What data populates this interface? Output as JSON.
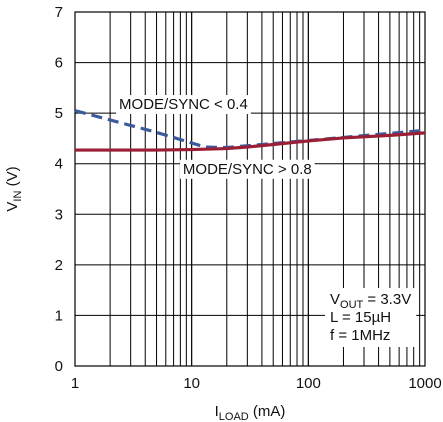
{
  "chart_data": {
    "type": "line",
    "x_scale": "log",
    "xlim": [
      1,
      1000
    ],
    "ylim": [
      0,
      7
    ],
    "grid": true,
    "xlabel": {
      "main": "I",
      "sub": "LOAD",
      "unit": " (mA)"
    },
    "ylabel": {
      "main": "V",
      "sub": "IN",
      "unit": " (V)"
    },
    "x_ticks": [
      {
        "value": 1,
        "label": "1"
      },
      {
        "value": 10,
        "label": "10"
      },
      {
        "value": 100,
        "label": "100"
      },
      {
        "value": 1000,
        "label": "1000"
      }
    ],
    "y_ticks": [
      {
        "value": 0,
        "label": "0"
      },
      {
        "value": 1,
        "label": "1"
      },
      {
        "value": 2,
        "label": "2"
      },
      {
        "value": 3,
        "label": "3"
      },
      {
        "value": 4,
        "label": "4"
      },
      {
        "value": 5,
        "label": "5"
      },
      {
        "value": 6,
        "label": "6"
      },
      {
        "value": 7,
        "label": "7"
      }
    ],
    "series": [
      {
        "style": "dashed",
        "color": "#3a5a9a",
        "x": [
          1,
          5,
          13,
          20,
          50,
          100,
          200,
          500,
          1000
        ],
        "y": [
          5.05,
          4.62,
          4.33,
          4.32,
          4.4,
          4.46,
          4.52,
          4.6,
          4.66
        ]
      },
      {
        "style": "solid",
        "color": "#9a1f35",
        "x": [
          1,
          5,
          10,
          20,
          30,
          50,
          100,
          200,
          500,
          1000
        ],
        "y": [
          4.27,
          4.27,
          4.28,
          4.3,
          4.33,
          4.38,
          4.45,
          4.51,
          4.56,
          4.61
        ]
      }
    ],
    "annotations": [
      {
        "text": "MODE/SYNC < 0.4",
        "x": 8.5,
        "y": 5.18
      },
      {
        "text": "MODE/SYNC > 0.8",
        "x": 30,
        "y": 3.9
      }
    ],
    "conditions": [
      {
        "main": "V",
        "sub": "OUT",
        "rest": " = 3.3V"
      },
      {
        "main": "L = 15µH",
        "sub": "",
        "rest": ""
      },
      {
        "main": "f = 1MHz",
        "sub": "",
        "rest": ""
      }
    ]
  }
}
